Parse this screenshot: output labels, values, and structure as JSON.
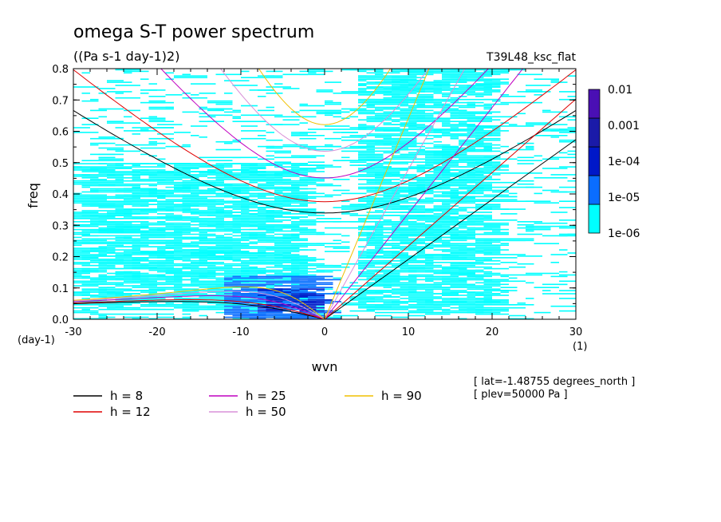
{
  "chart_data": {
    "type": "heatmap",
    "title": "omega S-T power spectrum",
    "subtitle": "((Pa s-1 day-1)2)",
    "run_label": "T39L48_ksc_flat",
    "xlabel": "wvn",
    "ylabel": "freq",
    "x_unit": "(1)",
    "y_unit": "(day-1)",
    "xlim": [
      -30,
      30
    ],
    "ylim": [
      0,
      0.8
    ],
    "x_ticks": [
      -30,
      -20,
      -10,
      0,
      10,
      20,
      30
    ],
    "x_tick_labels": [
      "-30",
      "-20",
      "-10",
      "0",
      "10",
      "20",
      "30"
    ],
    "y_ticks": [
      0,
      0.1,
      0.2,
      0.3,
      0.4,
      0.5,
      0.6,
      0.7,
      0.8
    ],
    "y_tick_labels": [
      "0.0",
      "0.1",
      "0.2",
      "0.3",
      "0.4",
      "0.5",
      "0.6",
      "0.7",
      "0.8"
    ],
    "colorbar": {
      "levels": [
        "1e-06",
        "1e-05",
        "1e-04",
        "0.001",
        "0.01"
      ],
      "colors": [
        "#00ffff",
        "#0a6dff",
        "#0018c8",
        "#1a1aa8",
        "#4a0fb4"
      ]
    },
    "power_regions": [
      {
        "level": 0,
        "x_range": [
          -30,
          -2
        ],
        "y_range": [
          0.03,
          0.5
        ],
        "coverage": 0.55
      },
      {
        "level": 0,
        "x_range": [
          4,
          20
        ],
        "y_range": [
          0.02,
          0.8
        ],
        "coverage": 0.5
      },
      {
        "level": 0,
        "x_range": [
          -30,
          30
        ],
        "y_range": [
          0.0,
          0.8
        ],
        "coverage": 0.12
      },
      {
        "level": 1,
        "x_range": [
          -12,
          0
        ],
        "y_range": [
          0.0,
          0.14
        ],
        "coverage": 0.55
      },
      {
        "level": 2,
        "x_range": [
          -8,
          -1
        ],
        "y_range": [
          0.02,
          0.1
        ],
        "coverage": 0.35
      }
    ],
    "dispersion_curves": [
      {
        "name": "h =  8",
        "h": 8,
        "color": "#000000"
      },
      {
        "name": "h = 12",
        "h": 12,
        "color": "#e00000"
      },
      {
        "name": "h = 25",
        "h": 25,
        "color": "#c000c0"
      },
      {
        "name": "h = 50",
        "h": 50,
        "color": "#d890d8"
      },
      {
        "name": "h = 90",
        "h": 90,
        "color": "#f0c000"
      }
    ],
    "annotations": [
      "[ lat=-1.48755 degrees_north ]",
      "[ plev=50000 Pa ]"
    ],
    "grid": false,
    "legend_position": "bottom-left"
  }
}
